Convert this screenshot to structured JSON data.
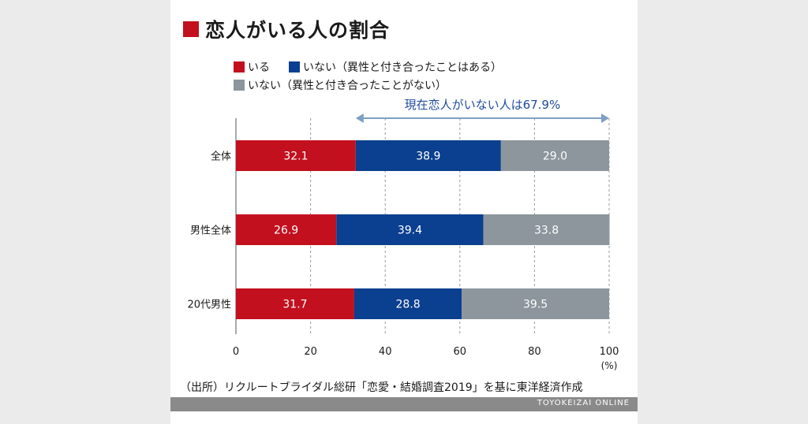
{
  "title": "恋人がいる人の割合",
  "legend": [
    {
      "label": "いる",
      "color": "#c3101e"
    },
    {
      "label": "いない（異性と付き合ったことはある）",
      "color": "#0b3f8f"
    },
    {
      "label": "いない（異性と付き合ったことがない）",
      "color": "#8c969c"
    }
  ],
  "annotation": "現在恋人がいない人は67.9%",
  "source": "（出所）リクルートブライダル総研「恋愛・結婚調査2019」を基に東洋経済作成",
  "brand": "TOYOKEIZAI ONLINE",
  "chart_data": {
    "type": "bar",
    "orientation": "horizontal",
    "stacked": true,
    "categories": [
      "全体",
      "男性全体",
      "20代男性"
    ],
    "series": [
      {
        "name": "いる",
        "color": "#c3101e",
        "values": [
          32.1,
          26.9,
          31.7
        ]
      },
      {
        "name": "いない（異性と付き合ったことはある）",
        "color": "#0b3f8f",
        "values": [
          38.9,
          39.4,
          28.8
        ]
      },
      {
        "name": "いない（異性と付き合ったことがない）",
        "color": "#8c969c",
        "values": [
          29.0,
          33.8,
          39.5
        ]
      }
    ],
    "value_labels": [
      [
        "32.1",
        "38.9",
        "29.0"
      ],
      [
        "26.9",
        "39.4",
        "33.8"
      ],
      [
        "31.7",
        "28.8",
        "39.5"
      ]
    ],
    "xlim": [
      0,
      100
    ],
    "xticks": [
      "0",
      "20",
      "40",
      "60",
      "80",
      "100"
    ],
    "xunit": "(%)",
    "grid": "vertical dashed",
    "legend_position": "top-left"
  }
}
